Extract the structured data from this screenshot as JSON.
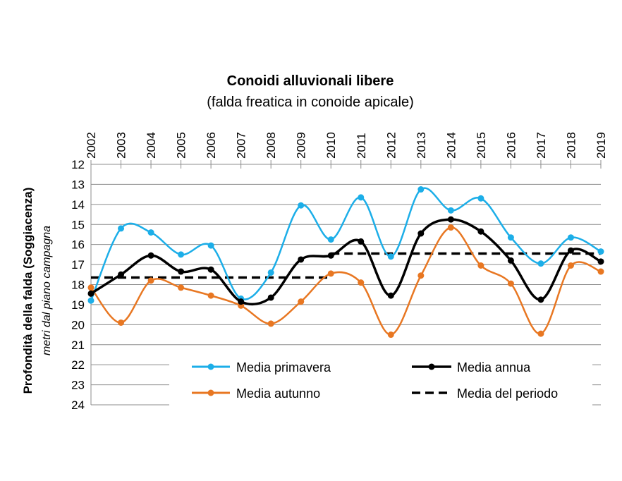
{
  "chart_data": {
    "type": "line",
    "title": "Conoidi alluvionali libere",
    "subtitle": "(falda freatica in conoide apicale)",
    "ylabel": "Profondità della falda (Soggiacenza)",
    "ylabel_sub": "metri dal piano campagna",
    "xlabel": "",
    "categories": [
      "2002",
      "2003",
      "2004",
      "2005",
      "2006",
      "2007",
      "2008",
      "2009",
      "2010",
      "2011",
      "2012",
      "2013",
      "2014",
      "2015",
      "2016",
      "2017",
      "2018",
      "2019"
    ],
    "y_ticks": [
      "12",
      "13",
      "14",
      "15",
      "16",
      "17",
      "18",
      "19",
      "20",
      "21",
      "22",
      "23",
      "24"
    ],
    "ylim": [
      12,
      24
    ],
    "y_inverted": true,
    "x_axis_position": "top",
    "grid": true,
    "legend_placement": "bottom-right",
    "series": [
      {
        "name": "Media primavera",
        "color": "#1CAEE8",
        "style": "solid-marker",
        "values": [
          18.8,
          15.2,
          15.4,
          16.5,
          16.05,
          18.7,
          17.4,
          14.05,
          15.75,
          13.65,
          16.6,
          13.25,
          14.3,
          13.7,
          15.65,
          16.95,
          15.65,
          16.35
        ]
      },
      {
        "name": "Media autunno",
        "color": "#E87722",
        "style": "solid-marker",
        "values": [
          18.15,
          19.9,
          17.8,
          18.15,
          18.55,
          19.05,
          19.95,
          18.85,
          17.45,
          17.9,
          20.5,
          17.55,
          15.15,
          17.05,
          17.95,
          20.45,
          17.05,
          17.35
        ]
      },
      {
        "name": "Media annua",
        "color": "#000000",
        "style": "solid-marker",
        "values": [
          18.45,
          17.5,
          16.55,
          17.35,
          17.25,
          18.85,
          18.65,
          16.75,
          16.55,
          15.85,
          18.55,
          15.45,
          14.75,
          15.35,
          16.8,
          18.75,
          16.3,
          16.85
        ]
      },
      {
        "name": "Media del periodo",
        "color": "#000000",
        "style": "dashed",
        "segments": [
          {
            "x_start": "2002",
            "x_end": "2010",
            "value": 17.65
          },
          {
            "x_start": "2010",
            "x_end": "2019",
            "value": 16.45
          }
        ]
      }
    ]
  }
}
